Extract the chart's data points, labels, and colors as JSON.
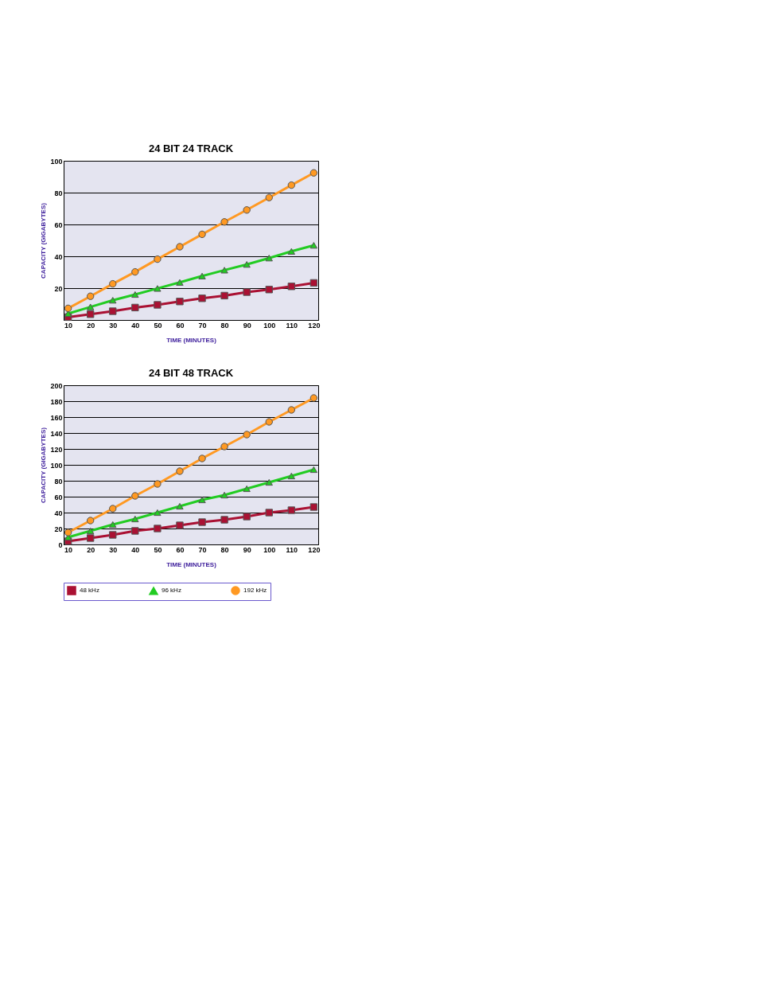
{
  "chart_data": [
    {
      "type": "line",
      "title": "24 BIT 24 TRACK",
      "xlabel": "TIME (MINUTES)",
      "ylabel": "CAPACITY (GIGABYTES)",
      "categories": [
        "10",
        "20",
        "30",
        "40",
        "50",
        "60",
        "70",
        "80",
        "90",
        "100",
        "110",
        "120"
      ],
      "ylim": [
        0,
        100
      ],
      "yticks": [
        20,
        40,
        60,
        80,
        100
      ],
      "grid": "y",
      "legend": "bottom",
      "line_style": "solid",
      "series": [
        {
          "name": "48 kHz",
          "color": "#aa1133",
          "marker": "square",
          "values": [
            1.8,
            3.6,
            5.5,
            7.8,
            9.5,
            11.6,
            13.6,
            15.3,
            17.5,
            19.1,
            21.1,
            23.3
          ]
        },
        {
          "name": "96 kHz",
          "color": "#22cc22",
          "marker": "triangle",
          "values": [
            4,
            8.2,
            12.4,
            16,
            19.8,
            23.6,
            27.6,
            31.3,
            34.9,
            38.9,
            43.1,
            46.9
          ]
        },
        {
          "name": "192 kHz",
          "color": "#ff9922",
          "marker": "circle",
          "values": [
            7.3,
            14.9,
            22.7,
            30.2,
            38.2,
            46,
            53.8,
            61.6,
            69.1,
            76.9,
            84.7,
            92.4
          ]
        }
      ]
    },
    {
      "type": "line",
      "title": "24 BIT 48 TRACK",
      "xlabel": "TIME (MINUTES)",
      "ylabel": "CAPACITY (GIGABYTES)",
      "categories": [
        "10",
        "20",
        "30",
        "40",
        "50",
        "60",
        "70",
        "80",
        "90",
        "100",
        "110",
        "120"
      ],
      "ylim": [
        0,
        200
      ],
      "yticks": [
        0,
        20,
        40,
        60,
        80,
        100,
        120,
        140,
        160,
        180,
        200
      ],
      "grid": "y",
      "legend": "bottom",
      "line_style": "solid",
      "series": [
        {
          "name": "48 kHz",
          "color": "#aa1133",
          "marker": "square",
          "values": [
            4,
            8,
            12,
            17,
            20,
            24,
            28,
            31,
            35,
            40,
            43,
            47
          ]
        },
        {
          "name": "96 kHz",
          "color": "#22cc22",
          "marker": "triangle",
          "values": [
            9,
            17,
            25,
            32,
            40,
            48,
            56,
            62,
            70,
            78,
            86,
            94
          ]
        },
        {
          "name": "192 kHz",
          "color": "#ff9922",
          "marker": "circle",
          "values": [
            15,
            30,
            45,
            61,
            76,
            92,
            108,
            123,
            138,
            154,
            169,
            184
          ]
        }
      ]
    }
  ]
}
